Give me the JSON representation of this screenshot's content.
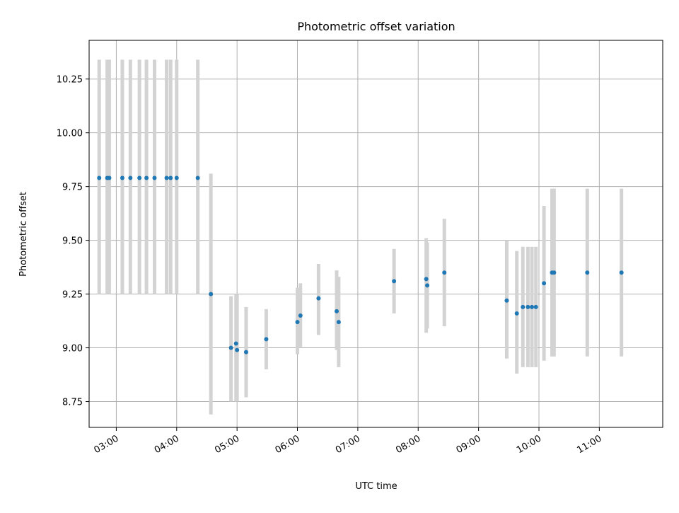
{
  "chart_data": {
    "type": "scatter",
    "title": "Photometric offset variation",
    "xlabel": "UTC time",
    "ylabel": "Photometric offset",
    "x_ticks": [
      "03:00",
      "04:00",
      "05:00",
      "06:00",
      "07:00",
      "08:00",
      "09:00",
      "10:00",
      "11:00"
    ],
    "y_ticks": [
      "8.75",
      "9.00",
      "9.25",
      "9.50",
      "9.75",
      "10.00",
      "10.25"
    ],
    "x_tick_hours": [
      3,
      4,
      5,
      6,
      7,
      8,
      9,
      10,
      11
    ],
    "y_tick_values": [
      8.75,
      9.0,
      9.25,
      9.5,
      9.75,
      10.0,
      10.25
    ],
    "xlim": [
      "02:33",
      "12:03"
    ],
    "ylim": [
      8.63,
      10.43
    ],
    "grid": true,
    "marker_color": "#1f77b4",
    "errorbar_color": "#d3d3d3",
    "points": [
      {
        "time": "02:43",
        "y": 9.79,
        "lo": 9.25,
        "hi": 10.34
      },
      {
        "time": "02:51",
        "y": 9.79,
        "lo": 9.25,
        "hi": 10.34
      },
      {
        "time": "02:53",
        "y": 9.79,
        "lo": 9.25,
        "hi": 10.34
      },
      {
        "time": "03:06",
        "y": 9.79,
        "lo": 9.25,
        "hi": 10.34
      },
      {
        "time": "03:14",
        "y": 9.79,
        "lo": 9.25,
        "hi": 10.34
      },
      {
        "time": "03:23",
        "y": 9.79,
        "lo": 9.25,
        "hi": 10.34
      },
      {
        "time": "03:30",
        "y": 9.79,
        "lo": 9.25,
        "hi": 10.34
      },
      {
        "time": "03:38",
        "y": 9.79,
        "lo": 9.25,
        "hi": 10.34
      },
      {
        "time": "03:50",
        "y": 9.79,
        "lo": 9.25,
        "hi": 10.34
      },
      {
        "time": "03:54",
        "y": 9.79,
        "lo": 9.25,
        "hi": 10.34
      },
      {
        "time": "04:00",
        "y": 9.79,
        "lo": 9.25,
        "hi": 10.34
      },
      {
        "time": "04:21",
        "y": 9.79,
        "lo": 9.25,
        "hi": 10.34
      },
      {
        "time": "04:34",
        "y": 9.25,
        "lo": 8.69,
        "hi": 9.81
      },
      {
        "time": "04:54",
        "y": 9.0,
        "lo": 8.75,
        "hi": 9.24
      },
      {
        "time": "04:59",
        "y": 9.02,
        "lo": 8.75,
        "hi": 9.25
      },
      {
        "time": "05:00",
        "y": 8.99,
        "lo": 8.75,
        "hi": 9.25
      },
      {
        "time": "05:09",
        "y": 8.98,
        "lo": 8.77,
        "hi": 9.19
      },
      {
        "time": "05:29",
        "y": 9.04,
        "lo": 8.9,
        "hi": 9.18
      },
      {
        "time": "06:00",
        "y": 9.12,
        "lo": 8.97,
        "hi": 9.28
      },
      {
        "time": "06:03",
        "y": 9.15,
        "lo": 9.0,
        "hi": 9.3
      },
      {
        "time": "06:21",
        "y": 9.23,
        "lo": 9.06,
        "hi": 9.39
      },
      {
        "time": "06:39",
        "y": 9.17,
        "lo": 8.99,
        "hi": 9.36
      },
      {
        "time": "06:41",
        "y": 9.12,
        "lo": 8.91,
        "hi": 9.33
      },
      {
        "time": "07:36",
        "y": 9.31,
        "lo": 9.16,
        "hi": 9.46
      },
      {
        "time": "08:08",
        "y": 9.32,
        "lo": 9.07,
        "hi": 9.51
      },
      {
        "time": "08:09",
        "y": 9.29,
        "lo": 9.09,
        "hi": 9.49
      },
      {
        "time": "08:26",
        "y": 9.35,
        "lo": 9.1,
        "hi": 9.6
      },
      {
        "time": "09:28",
        "y": 9.22,
        "lo": 8.95,
        "hi": 9.5
      },
      {
        "time": "09:38",
        "y": 9.16,
        "lo": 8.88,
        "hi": 9.45
      },
      {
        "time": "09:44",
        "y": 9.19,
        "lo": 8.91,
        "hi": 9.47
      },
      {
        "time": "09:49",
        "y": 9.19,
        "lo": 8.91,
        "hi": 9.47
      },
      {
        "time": "09:53",
        "y": 9.19,
        "lo": 8.91,
        "hi": 9.47
      },
      {
        "time": "09:57",
        "y": 9.19,
        "lo": 8.91,
        "hi": 9.47
      },
      {
        "time": "10:05",
        "y": 9.3,
        "lo": 8.94,
        "hi": 9.66
      },
      {
        "time": "10:13",
        "y": 9.35,
        "lo": 8.96,
        "hi": 9.74
      },
      {
        "time": "10:15",
        "y": 9.35,
        "lo": 8.96,
        "hi": 9.74
      },
      {
        "time": "10:48",
        "y": 9.35,
        "lo": 8.96,
        "hi": 9.74
      },
      {
        "time": "11:22",
        "y": 9.35,
        "lo": 8.96,
        "hi": 9.74
      }
    ]
  }
}
